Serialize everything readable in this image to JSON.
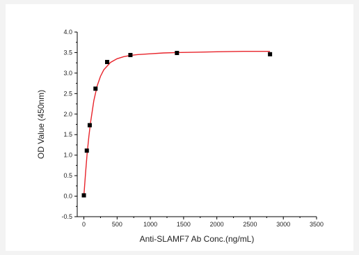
{
  "chart_data": {
    "type": "scatter",
    "title": "",
    "xlabel": "Anti-SLAMF7 Ab Conc.(ng/mL)",
    "ylabel": "OD Value (450nm)",
    "xlim": [
      -100,
      3500
    ],
    "ylim": [
      -0.5,
      4.0
    ],
    "xticks": [
      0,
      500,
      1000,
      1500,
      2000,
      2500,
      3000,
      3500
    ],
    "yticks": [
      -0.5,
      0.0,
      0.5,
      1.0,
      1.5,
      2.0,
      2.5,
      3.0,
      3.5,
      4.0
    ],
    "xtick_labels": [
      "0",
      "500",
      "1000",
      "1500",
      "2000",
      "2500",
      "3000",
      "3500"
    ],
    "ytick_labels": [
      "-0.5",
      "0.0",
      "0.5",
      "1.0",
      "1.5",
      "2.0",
      "2.5",
      "3.0",
      "3.5",
      "4.0"
    ],
    "grid": false,
    "legend": "none",
    "series": [
      {
        "marker": "square",
        "color": "#000000",
        "x": [
          0,
          44,
          88,
          175,
          350,
          700,
          1400,
          2800
        ],
        "y": [
          0.02,
          1.11,
          1.73,
          2.62,
          3.27,
          3.44,
          3.49,
          3.46
        ]
      }
    ],
    "fit_curve": {
      "color": "#e8232a",
      "x": [
        0,
        25,
        50,
        75,
        100,
        150,
        200,
        250,
        300,
        400,
        500,
        600,
        700,
        800,
        1000,
        1200,
        1400,
        1700,
        2000,
        2400,
        2800
      ],
      "y": [
        0.02,
        0.55,
        1.05,
        1.45,
        1.79,
        2.33,
        2.69,
        2.92,
        3.08,
        3.26,
        3.35,
        3.4,
        3.43,
        3.45,
        3.47,
        3.49,
        3.5,
        3.51,
        3.52,
        3.53,
        3.53
      ]
    }
  }
}
